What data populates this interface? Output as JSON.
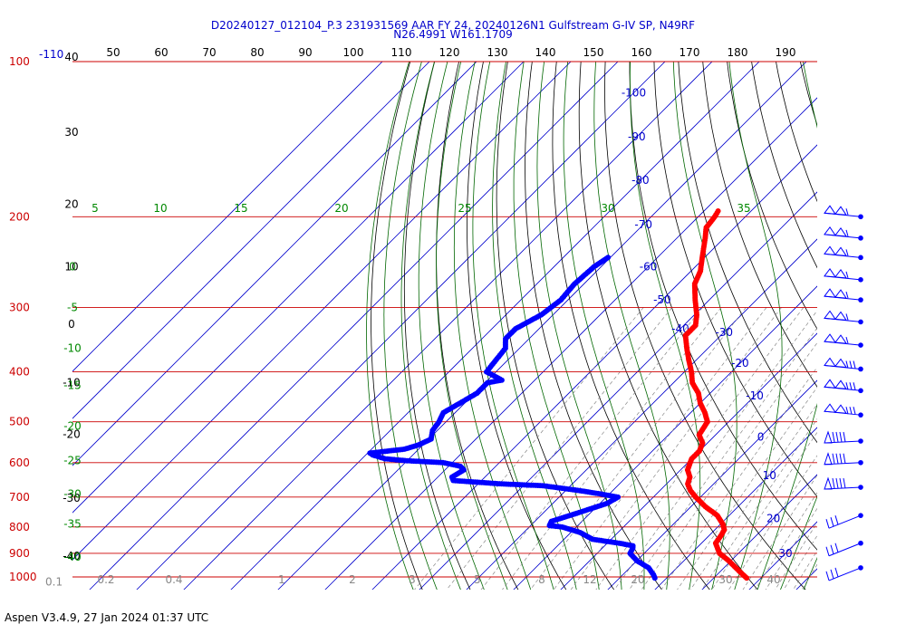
{
  "header": {
    "line1": "D20240127_012104_P.3 231931569 AAR FY 24, 20240126N1 Gulfstream G-IV SP, N49RF",
    "line2": "N26.4991 W161.1709"
  },
  "footer": "Aspen V3.4.9, 27 Jan 2024  01:37 UTC",
  "colors": {
    "isobar": "#cc0000",
    "temperature": "#ff0000",
    "dewpoint": "#0000ff",
    "dry_adiabat": "#000000",
    "moist_adiabat": "#006600",
    "isotherm": "#0000cc",
    "mixing_ratio": "#888888",
    "pressure_label": "#cc0000",
    "isotherm_label": "#0000cc",
    "moist_label": "#008800"
  },
  "chart_data": {
    "type": "skew-t",
    "pressure_axis": {
      "unit": "hPa",
      "log_scale": true,
      "levels": [
        {
          "p": 100,
          "label": "100"
        },
        {
          "p": 200,
          "label": "200"
        },
        {
          "p": 300,
          "label": "300"
        },
        {
          "p": 400,
          "label": "400"
        },
        {
          "p": 500,
          "label": "500"
        },
        {
          "p": 600,
          "label": "600"
        },
        {
          "p": 700,
          "label": "700"
        },
        {
          "p": 800,
          "label": "800"
        },
        {
          "p": 900,
          "label": "900"
        },
        {
          "p": 1000,
          "label": "1000"
        }
      ],
      "extra_labels": [
        {
          "p": 100,
          "label": "-110"
        },
        {
          "p": 1060,
          "label": "0.1"
        }
      ]
    },
    "top_scale": [
      "50",
      "60",
      "70",
      "80",
      "90",
      "100",
      "110",
      "120",
      "130",
      "140",
      "150",
      "160",
      "170",
      "180",
      "190"
    ],
    "left_scale": [
      {
        "p": 100,
        "label": "40"
      },
      {
        "p": 140,
        "label": "30"
      },
      {
        "p": 193,
        "label": "20"
      },
      {
        "p": 255,
        "label": "10"
      },
      {
        "p": 330,
        "label": "0"
      },
      {
        "p": 428,
        "label": "-10"
      },
      {
        "p": 540,
        "label": "-20"
      },
      {
        "p": 718,
        "label": "-30"
      },
      {
        "p": 930,
        "label": "-40"
      }
    ],
    "isotherm_labels": [
      {
        "t": -100,
        "p": 115,
        "label": "-100"
      },
      {
        "t": -90,
        "p": 140,
        "label": "-90"
      },
      {
        "t": -80,
        "p": 170,
        "label": "-80"
      },
      {
        "t": -70,
        "p": 207,
        "label": "-70"
      },
      {
        "t": -60,
        "p": 250,
        "label": "-60"
      },
      {
        "t": -50,
        "p": 290,
        "label": "-50"
      },
      {
        "t": -40,
        "p": 330,
        "label": "-40"
      },
      {
        "t": -30,
        "p": 335,
        "label": "-30"
      },
      {
        "t": -20,
        "p": 385,
        "label": "-20"
      },
      {
        "t": -10,
        "p": 445,
        "label": "-10"
      },
      {
        "t": 0,
        "p": 535,
        "label": "0"
      },
      {
        "t": 10,
        "p": 635,
        "label": "10"
      },
      {
        "t": 20,
        "p": 770,
        "label": "20"
      },
      {
        "t": 30,
        "p": 900,
        "label": "30"
      }
    ],
    "moist_top_labels": [
      {
        "theta": 5,
        "label": "5"
      },
      {
        "theta": 10,
        "label": "10"
      },
      {
        "theta": 15,
        "label": "15"
      },
      {
        "theta": 20,
        "label": "20"
      },
      {
        "theta": 25,
        "label": "25"
      },
      {
        "theta": 30,
        "label": "30"
      },
      {
        "theta": 35,
        "label": "35"
      }
    ],
    "moist_left_labels": [
      {
        "p": 250,
        "label": "0"
      },
      {
        "p": 300,
        "label": "-5"
      },
      {
        "p": 360,
        "label": "-10"
      },
      {
        "p": 425,
        "label": "-15"
      },
      {
        "p": 510,
        "label": "-20"
      },
      {
        "p": 595,
        "label": "-25"
      },
      {
        "p": 690,
        "label": "-30"
      },
      {
        "p": 790,
        "label": "-35"
      },
      {
        "p": 915,
        "label": "-40"
      }
    ],
    "mixing_ratio_labels": [
      "0.2",
      "0.4",
      "1",
      "2",
      "3",
      "5",
      "8",
      "12",
      "20",
      "30",
      "40"
    ],
    "temperature_profile": [
      {
        "p": 195,
        "t": -57.0
      },
      {
        "p": 200,
        "t": -56.5
      },
      {
        "p": 210,
        "t": -56.0
      },
      {
        "p": 220,
        "t": -54.0
      },
      {
        "p": 240,
        "t": -50.5
      },
      {
        "p": 255,
        "t": -48.0
      },
      {
        "p": 270,
        "t": -46.5
      },
      {
        "p": 290,
        "t": -43.0
      },
      {
        "p": 310,
        "t": -39.5
      },
      {
        "p": 325,
        "t": -37.5
      },
      {
        "p": 340,
        "t": -37.5
      },
      {
        "p": 360,
        "t": -34.5
      },
      {
        "p": 380,
        "t": -31.5
      },
      {
        "p": 400,
        "t": -28.5
      },
      {
        "p": 420,
        "t": -26.0
      },
      {
        "p": 440,
        "t": -22.5
      },
      {
        "p": 460,
        "t": -20.0
      },
      {
        "p": 480,
        "t": -17.0
      },
      {
        "p": 500,
        "t": -14.5
      },
      {
        "p": 515,
        "t": -14.0
      },
      {
        "p": 530,
        "t": -13.5
      },
      {
        "p": 550,
        "t": -11.0
      },
      {
        "p": 570,
        "t": -10.0
      },
      {
        "p": 590,
        "t": -10.0
      },
      {
        "p": 600,
        "t": -9.5
      },
      {
        "p": 620,
        "t": -8.5
      },
      {
        "p": 640,
        "t": -6.5
      },
      {
        "p": 660,
        "t": -5.5
      },
      {
        "p": 680,
        "t": -3.5
      },
      {
        "p": 700,
        "t": -1.0
      },
      {
        "p": 730,
        "t": 3.0
      },
      {
        "p": 760,
        "t": 7.5
      },
      {
        "p": 790,
        "t": 10.5
      },
      {
        "p": 810,
        "t": 12.0
      },
      {
        "p": 830,
        "t": 12.5
      },
      {
        "p": 860,
        "t": 13.0
      },
      {
        "p": 880,
        "t": 14.5
      },
      {
        "p": 900,
        "t": 16.0
      },
      {
        "p": 930,
        "t": 19.5
      },
      {
        "p": 960,
        "t": 22.5
      },
      {
        "p": 990,
        "t": 25.5
      },
      {
        "p": 1005,
        "t": 27.0
      }
    ],
    "dewpoint_profile": [
      {
        "p": 240,
        "td": -70.5
      },
      {
        "p": 250,
        "td": -71.5
      },
      {
        "p": 270,
        "td": -72.0
      },
      {
        "p": 290,
        "td": -71.5
      },
      {
        "p": 310,
        "td": -72.5
      },
      {
        "p": 330,
        "td": -75.0
      },
      {
        "p": 345,
        "td": -75.0
      },
      {
        "p": 360,
        "td": -73.0
      },
      {
        "p": 380,
        "td": -72.5
      },
      {
        "p": 400,
        "td": -72.0
      },
      {
        "p": 415,
        "td": -67.0
      },
      {
        "p": 420,
        "td": -69.5
      },
      {
        "p": 440,
        "td": -69.5
      },
      {
        "p": 460,
        "td": -71.0
      },
      {
        "p": 480,
        "td": -72.5
      },
      {
        "p": 500,
        "td": -71.5
      },
      {
        "p": 520,
        "td": -71.0
      },
      {
        "p": 540,
        "td": -69.5
      },
      {
        "p": 555,
        "td": -71.0
      },
      {
        "p": 565,
        "td": -73.0
      },
      {
        "p": 575,
        "td": -79.5
      },
      {
        "p": 580,
        "td": -78.5
      },
      {
        "p": 590,
        "td": -75.0
      },
      {
        "p": 595,
        "td": -70.0
      },
      {
        "p": 600,
        "td": -62.0
      },
      {
        "p": 610,
        "td": -57.5
      },
      {
        "p": 620,
        "td": -56.0
      },
      {
        "p": 640,
        "td": -57.0
      },
      {
        "p": 650,
        "td": -56.0
      },
      {
        "p": 660,
        "td": -45.0
      },
      {
        "p": 665,
        "td": -36.0
      },
      {
        "p": 680,
        "td": -27.0
      },
      {
        "p": 690,
        "td": -22.0
      },
      {
        "p": 700,
        "td": -17.5
      },
      {
        "p": 720,
        "td": -18.5
      },
      {
        "p": 750,
        "td": -22.5
      },
      {
        "p": 780,
        "td": -26.5
      },
      {
        "p": 795,
        "td": -26.0
      },
      {
        "p": 800,
        "td": -23.0
      },
      {
        "p": 820,
        "td": -18.0
      },
      {
        "p": 845,
        "td": -14.0
      },
      {
        "p": 860,
        "td": -7.5
      },
      {
        "p": 870,
        "td": -4.0
      },
      {
        "p": 880,
        "td": -3.5
      },
      {
        "p": 900,
        "td": -3.0
      },
      {
        "p": 930,
        "td": 0.0
      },
      {
        "p": 960,
        "td": 4.0
      },
      {
        "p": 990,
        "td": 6.5
      },
      {
        "p": 1005,
        "td": 7.5
      }
    ],
    "wind_barbs": [
      {
        "p": 200,
        "kind": "pennants"
      },
      {
        "p": 220,
        "kind": "pennants"
      },
      {
        "p": 240,
        "kind": "pennants"
      },
      {
        "p": 265,
        "kind": "pennants"
      },
      {
        "p": 290,
        "kind": "pennants"
      },
      {
        "p": 320,
        "kind": "pennants"
      },
      {
        "p": 355,
        "kind": "pennants"
      },
      {
        "p": 395,
        "kind": "pennant-barbs"
      },
      {
        "p": 435,
        "kind": "pennant-barbs"
      },
      {
        "p": 485,
        "kind": "pennant-barbs"
      },
      {
        "p": 545,
        "kind": "barbs"
      },
      {
        "p": 600,
        "kind": "barbs"
      },
      {
        "p": 670,
        "kind": "barbs"
      },
      {
        "p": 760,
        "kind": "short-barbs"
      },
      {
        "p": 860,
        "kind": "short-barbs"
      },
      {
        "p": 960,
        "kind": "short-barbs"
      }
    ]
  }
}
